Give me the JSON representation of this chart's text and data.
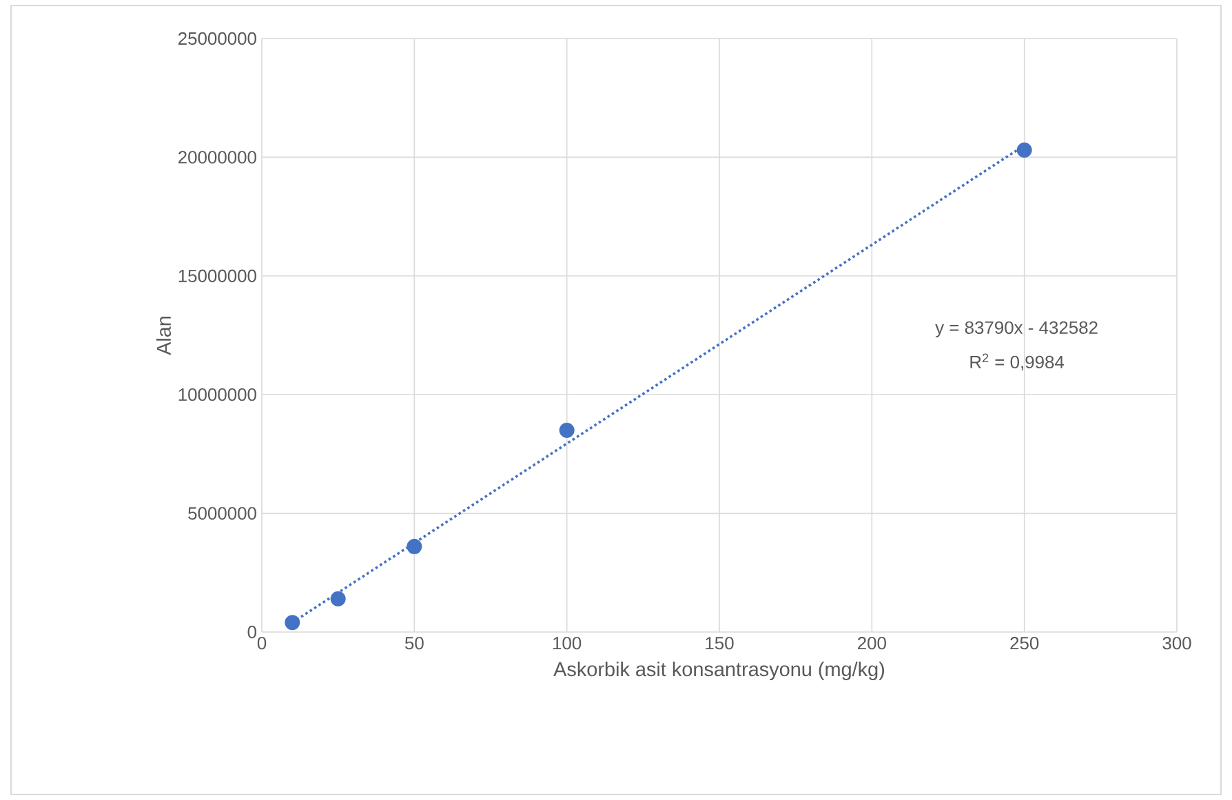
{
  "chart_data": {
    "type": "scatter",
    "xlabel": "Askorbik asit konsantrasyonu (mg/kg)",
    "ylabel": "Alan",
    "xlim": [
      0,
      300
    ],
    "ylim": [
      0,
      25000000
    ],
    "xticks": [
      0,
      50,
      100,
      150,
      200,
      250,
      300
    ],
    "yticks": [
      0,
      5000000,
      10000000,
      15000000,
      20000000,
      25000000
    ],
    "grid": true,
    "marker": "circle",
    "annotations": [
      "y = 83790x - 432582",
      "R$^{2}$ = 0,9984"
    ],
    "series": [
      {
        "color": "#4472c4",
        "x": [
          10,
          25,
          50,
          100,
          250
        ],
        "values": [
          400000,
          1400000,
          3600000,
          8500000,
          20300000
        ]
      },
      {
        "type": "line",
        "color": "#4472c4",
        "line_style": "dotted",
        "marker": "none",
        "x": [
          10,
          250
        ],
        "values": [
          400000,
          20500000
        ]
      }
    ]
  }
}
